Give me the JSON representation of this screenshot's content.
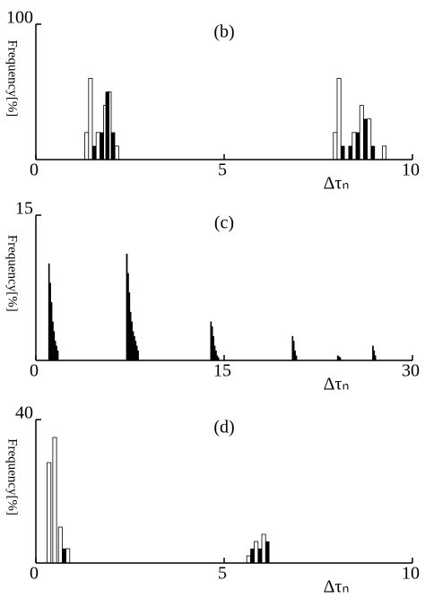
{
  "chart_data": [
    {
      "type": "bar",
      "title": "(b)",
      "x_label": "Δτₙ",
      "y_label": "Frequency[%]",
      "xlim": [
        0,
        10
      ],
      "ylim": [
        0,
        100
      ],
      "xticks": [
        0,
        5,
        10
      ],
      "yticks": [
        100
      ],
      "bar_width": 0.1,
      "series": [
        {
          "color": "#ffffff",
          "x": [
            1.3,
            1.4,
            1.6,
            1.8,
            1.9,
            2.1,
            7.9,
            8.0,
            8.4,
            8.6,
            8.8,
            9.2
          ],
          "values": [
            20,
            60,
            20,
            40,
            50,
            10,
            20,
            60,
            20,
            40,
            30,
            10
          ]
        },
        {
          "color": "#000000",
          "x": [
            1.5,
            1.7,
            1.85,
            2.0,
            8.1,
            8.3,
            8.5,
            8.7,
            8.9
          ],
          "values": [
            10,
            20,
            50,
            20,
            10,
            10,
            20,
            30,
            10
          ]
        }
      ]
    },
    {
      "type": "bar",
      "title": "(c)",
      "x_label": "Δτₙ",
      "y_label": "Frequency[%]",
      "xlim": [
        0,
        30
      ],
      "ylim": [
        0,
        15
      ],
      "xticks": [
        0,
        15,
        30
      ],
      "yticks": [
        15
      ],
      "bar_width": 0.1,
      "series": [
        {
          "color": "#000000",
          "x": [
            1.0,
            1.1,
            1.2,
            1.3,
            1.4,
            1.5,
            1.6,
            1.7,
            7.2,
            7.3,
            7.4,
            7.5,
            7.6,
            7.7,
            7.8,
            7.9,
            8.0,
            8.1,
            13.9,
            14.0,
            14.1,
            14.2,
            14.3,
            14.4,
            14.5,
            20.4,
            20.5,
            20.6,
            20.7,
            24.0,
            24.1,
            24.2,
            26.8,
            26.9,
            27.0
          ],
          "values": [
            10,
            8,
            6,
            4,
            3,
            2,
            1.5,
            1,
            11,
            9,
            7,
            5,
            4,
            3,
            2.5,
            2,
            1.5,
            1,
            4,
            3.5,
            2.5,
            1.5,
            1,
            0.5,
            0.3,
            2.5,
            2,
            1,
            0.5,
            0.5,
            0.4,
            0.3,
            1.5,
            1,
            0.5
          ]
        }
      ]
    },
    {
      "type": "bar",
      "title": "(d)",
      "x_label": "Δτₙ",
      "y_label": "Frequency[%]",
      "xlim": [
        0,
        10
      ],
      "ylim": [
        0,
        40
      ],
      "xticks": [
        0,
        5,
        10
      ],
      "yticks": [
        40
      ],
      "bar_width": 0.1,
      "series": [
        {
          "color": "#ffffff",
          "x": [
            0.3,
            0.45,
            0.6,
            0.8,
            5.6,
            5.8,
            6.0
          ],
          "values": [
            28,
            35,
            10,
            4,
            2,
            6,
            8
          ]
        },
        {
          "color": "#000000",
          "x": [
            0.7,
            5.7,
            5.9,
            6.1
          ],
          "values": [
            4,
            4,
            4,
            6
          ]
        }
      ]
    }
  ]
}
